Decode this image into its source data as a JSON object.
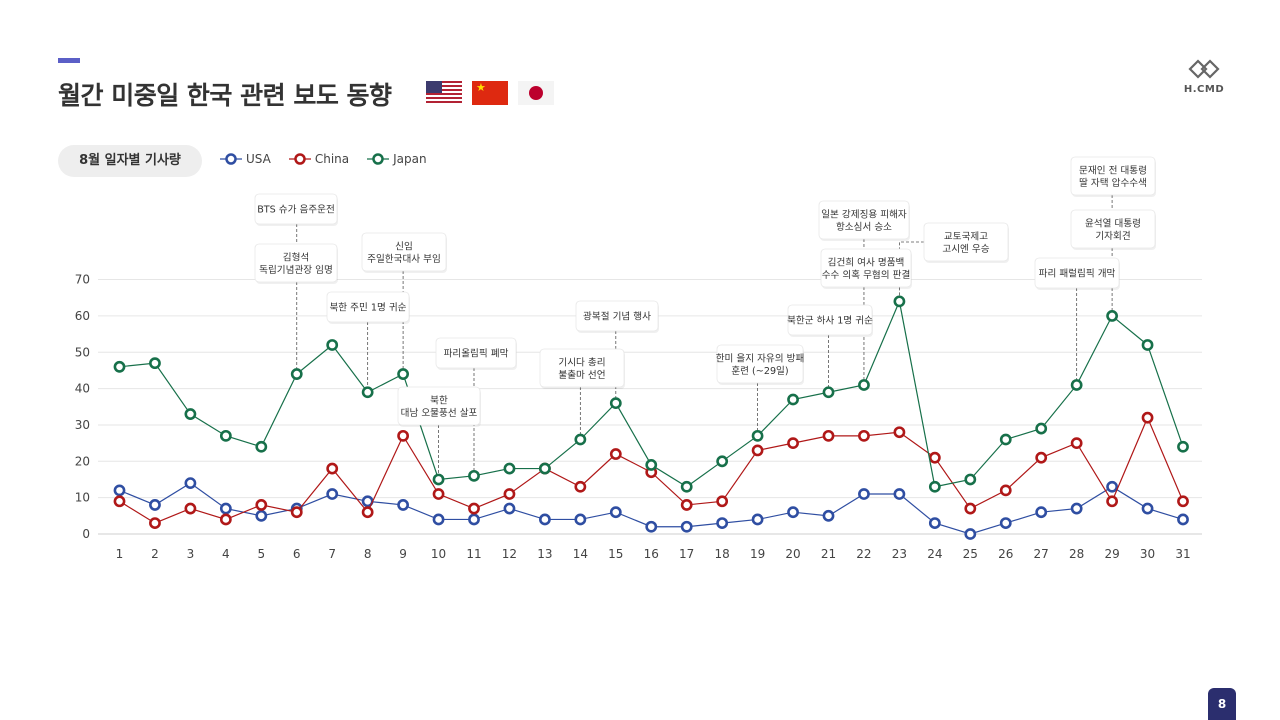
{
  "page": {
    "title": "월간 미중일 한국 관련 보도 동향",
    "page_number": "8",
    "logo_text": "H.CMD"
  },
  "flags": [
    "us-flag",
    "china-flag",
    "japan-flag"
  ],
  "chart_data": {
    "type": "line",
    "title": "8월 일자별 기사량",
    "x": [
      1,
      2,
      3,
      4,
      5,
      6,
      7,
      8,
      9,
      10,
      11,
      12,
      13,
      14,
      15,
      16,
      17,
      18,
      19,
      20,
      21,
      22,
      23,
      24,
      25,
      26,
      27,
      28,
      29,
      30,
      31
    ],
    "ylim": [
      0,
      70
    ],
    "yticks": [
      0,
      10,
      20,
      30,
      40,
      50,
      60,
      70
    ],
    "grid": true,
    "legend_position": "top-left",
    "series": [
      {
        "name": "USA",
        "color": "#2f4ea2",
        "values": [
          12,
          8,
          14,
          7,
          5,
          7,
          11,
          9,
          8,
          4,
          4,
          7,
          4,
          4,
          6,
          2,
          2,
          3,
          4,
          6,
          5,
          11,
          11,
          3,
          0,
          3,
          6,
          7,
          13,
          7,
          4
        ]
      },
      {
        "name": "China",
        "color": "#b01818",
        "values": [
          9,
          3,
          7,
          4,
          8,
          6,
          18,
          6,
          27,
          11,
          7,
          11,
          18,
          13,
          22,
          17,
          8,
          9,
          23,
          25,
          27,
          27,
          28,
          21,
          7,
          12,
          21,
          25,
          9,
          32,
          9
        ]
      },
      {
        "name": "Japan",
        "color": "#17704a",
        "values": [
          46,
          47,
          33,
          27,
          24,
          44,
          52,
          39,
          44,
          15,
          16,
          18,
          18,
          26,
          36,
          19,
          13,
          20,
          27,
          37,
          39,
          41,
          64,
          13,
          15,
          26,
          29,
          41,
          60,
          52,
          24
        ]
      }
    ],
    "annotations": [
      {
        "text": "BTS 슈가 음주운전",
        "x": 6
      },
      {
        "text": "김형석\n독립기념관장 임명",
        "x": 6
      },
      {
        "text": "북한 주민 1명 귀순",
        "x": 8
      },
      {
        "text": "신임\n주일한국대사 부임",
        "x": 9
      },
      {
        "text": "북한\n대남 오물풍선 살포",
        "x": 10
      },
      {
        "text": "파리올림픽 폐막",
        "x": 11
      },
      {
        "text": "기시다 총리\n불출마 선언",
        "x": 14
      },
      {
        "text": "광복절 기념 행사",
        "x": 15
      },
      {
        "text": "한미 을지 자유의 방패\n훈련 (~29일)",
        "x": 19
      },
      {
        "text": "북한군 하사 1명 귀순",
        "x": 21
      },
      {
        "text": "일본 강제징용 피해자\n항소심서 승소",
        "x": 22
      },
      {
        "text": "김건희 여사 명품백\n수수 의혹 무혐의 판결",
        "x": 22
      },
      {
        "text": "교토국제고\n고시엔 우승",
        "x": 23
      },
      {
        "text": "파리 패럴림픽 개막",
        "x": 28
      },
      {
        "text": "윤석열 대통령\n기자회견",
        "x": 29
      },
      {
        "text": "문재인 전 대통령\n딸 자택 압수수색",
        "x": 29
      }
    ]
  }
}
